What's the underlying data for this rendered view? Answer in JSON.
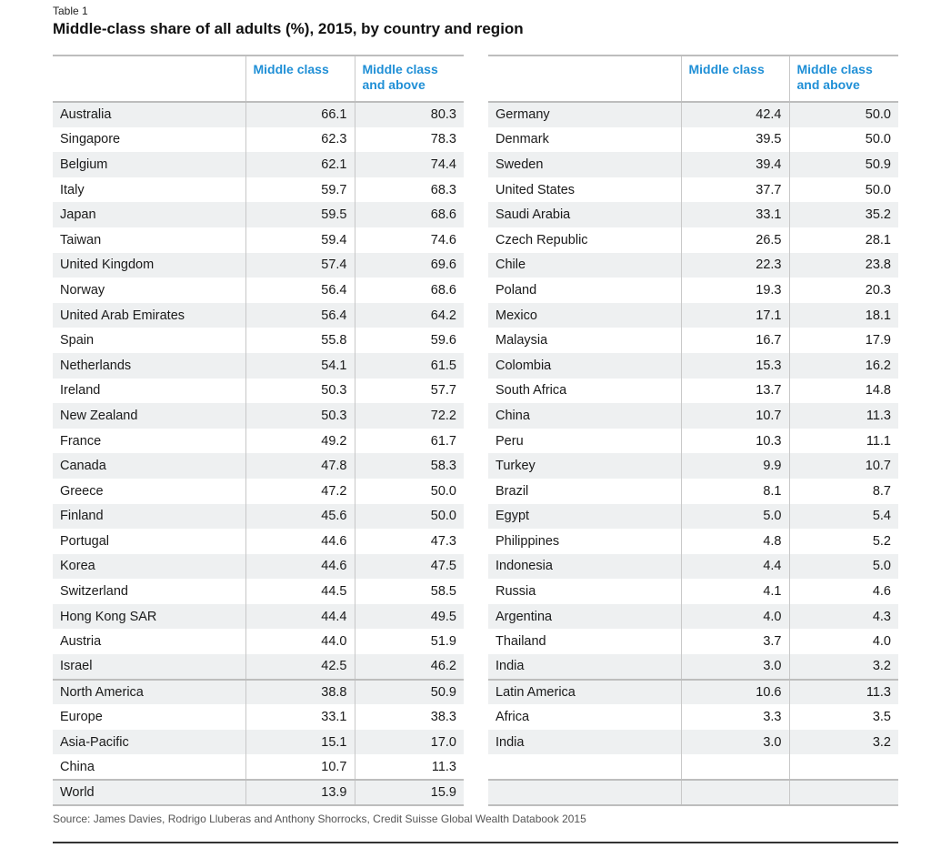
{
  "label": "Table 1",
  "title": "Middle-class share of all adults (%), 2015, by country and region",
  "columns": {
    "middle_class": "Middle class",
    "middle_and_above_line1": "Middle class",
    "middle_and_above_line2": "and above"
  },
  "left": {
    "countries": [
      {
        "name": "Australia",
        "mc": "66.1",
        "mca": "80.3"
      },
      {
        "name": "Singapore",
        "mc": "62.3",
        "mca": "78.3"
      },
      {
        "name": "Belgium",
        "mc": "62.1",
        "mca": "74.4"
      },
      {
        "name": "Italy",
        "mc": "59.7",
        "mca": "68.3"
      },
      {
        "name": "Japan",
        "mc": "59.5",
        "mca": "68.6"
      },
      {
        "name": "Taiwan",
        "mc": "59.4",
        "mca": "74.6"
      },
      {
        "name": "United Kingdom",
        "mc": "57.4",
        "mca": "69.6"
      },
      {
        "name": "Norway",
        "mc": "56.4",
        "mca": "68.6"
      },
      {
        "name": "United Arab Emirates",
        "mc": "56.4",
        "mca": "64.2"
      },
      {
        "name": "Spain",
        "mc": "55.8",
        "mca": "59.6"
      },
      {
        "name": "Netherlands",
        "mc": "54.1",
        "mca": "61.5"
      },
      {
        "name": "Ireland",
        "mc": "50.3",
        "mca": "57.7"
      },
      {
        "name": "New Zealand",
        "mc": "50.3",
        "mca": "72.2"
      },
      {
        "name": "France",
        "mc": "49.2",
        "mca": "61.7"
      },
      {
        "name": "Canada",
        "mc": "47.8",
        "mca": "58.3"
      },
      {
        "name": "Greece",
        "mc": "47.2",
        "mca": "50.0"
      },
      {
        "name": "Finland",
        "mc": "45.6",
        "mca": "50.0"
      },
      {
        "name": "Portugal",
        "mc": "44.6",
        "mca": "47.3"
      },
      {
        "name": "Korea",
        "mc": "44.6",
        "mca": "47.5"
      },
      {
        "name": "Switzerland",
        "mc": "44.5",
        "mca": "58.5"
      },
      {
        "name": "Hong Kong SAR",
        "mc": "44.4",
        "mca": "49.5"
      },
      {
        "name": "Austria",
        "mc": "44.0",
        "mca": "51.9"
      },
      {
        "name": "Israel",
        "mc": "42.5",
        "mca": "46.2"
      }
    ],
    "regions": [
      {
        "name": "North America",
        "mc": "38.8",
        "mca": "50.9"
      },
      {
        "name": "Europe",
        "mc": "33.1",
        "mca": "38.3"
      },
      {
        "name": "Asia-Pacific",
        "mc": "15.1",
        "mca": "17.0"
      },
      {
        "name": "China",
        "mc": "10.7",
        "mca": "11.3"
      },
      {
        "name": "World",
        "mc": "13.9",
        "mca": "15.9"
      }
    ]
  },
  "right": {
    "countries": [
      {
        "name": "Germany",
        "mc": "42.4",
        "mca": "50.0"
      },
      {
        "name": "Denmark",
        "mc": "39.5",
        "mca": "50.0"
      },
      {
        "name": "Sweden",
        "mc": "39.4",
        "mca": "50.9"
      },
      {
        "name": "United States",
        "mc": "37.7",
        "mca": "50.0"
      },
      {
        "name": "Saudi Arabia",
        "mc": "33.1",
        "mca": "35.2"
      },
      {
        "name": "Czech Republic",
        "mc": "26.5",
        "mca": "28.1"
      },
      {
        "name": "Chile",
        "mc": "22.3",
        "mca": "23.8"
      },
      {
        "name": "Poland",
        "mc": "19.3",
        "mca": "20.3"
      },
      {
        "name": "Mexico",
        "mc": "17.1",
        "mca": "18.1"
      },
      {
        "name": "Malaysia",
        "mc": "16.7",
        "mca": "17.9"
      },
      {
        "name": "Colombia",
        "mc": "15.3",
        "mca": "16.2"
      },
      {
        "name": "South Africa",
        "mc": "13.7",
        "mca": "14.8"
      },
      {
        "name": "China",
        "mc": "10.7",
        "mca": "11.3"
      },
      {
        "name": "Peru",
        "mc": "10.3",
        "mca": "11.1"
      },
      {
        "name": "Turkey",
        "mc": "9.9",
        "mca": "10.7"
      },
      {
        "name": "Brazil",
        "mc": "8.1",
        "mca": "8.7"
      },
      {
        "name": "Egypt",
        "mc": "5.0",
        "mca": "5.4"
      },
      {
        "name": "Philippines",
        "mc": "4.8",
        "mca": "5.2"
      },
      {
        "name": "Indonesia",
        "mc": "4.4",
        "mca": "5.0"
      },
      {
        "name": "Russia",
        "mc": "4.1",
        "mca": "4.6"
      },
      {
        "name": "Argentina",
        "mc": "4.0",
        "mca": "4.3"
      },
      {
        "name": "Thailand",
        "mc": "3.7",
        "mca": "4.0"
      },
      {
        "name": "India",
        "mc": "3.0",
        "mca": "3.2"
      }
    ],
    "regions": [
      {
        "name": "Latin America",
        "mc": "10.6",
        "mca": "11.3"
      },
      {
        "name": "Africa",
        "mc": "3.3",
        "mca": "3.5"
      },
      {
        "name": "India",
        "mc": "3.0",
        "mca": "3.2"
      },
      {
        "name": "",
        "mc": "",
        "mca": ""
      },
      {
        "name": "",
        "mc": "",
        "mca": ""
      }
    ]
  },
  "source": "Source: James Davies, Rodrigo Lluberas and Anthony Shorrocks, Credit Suisse Global Wealth Databook 2015"
}
